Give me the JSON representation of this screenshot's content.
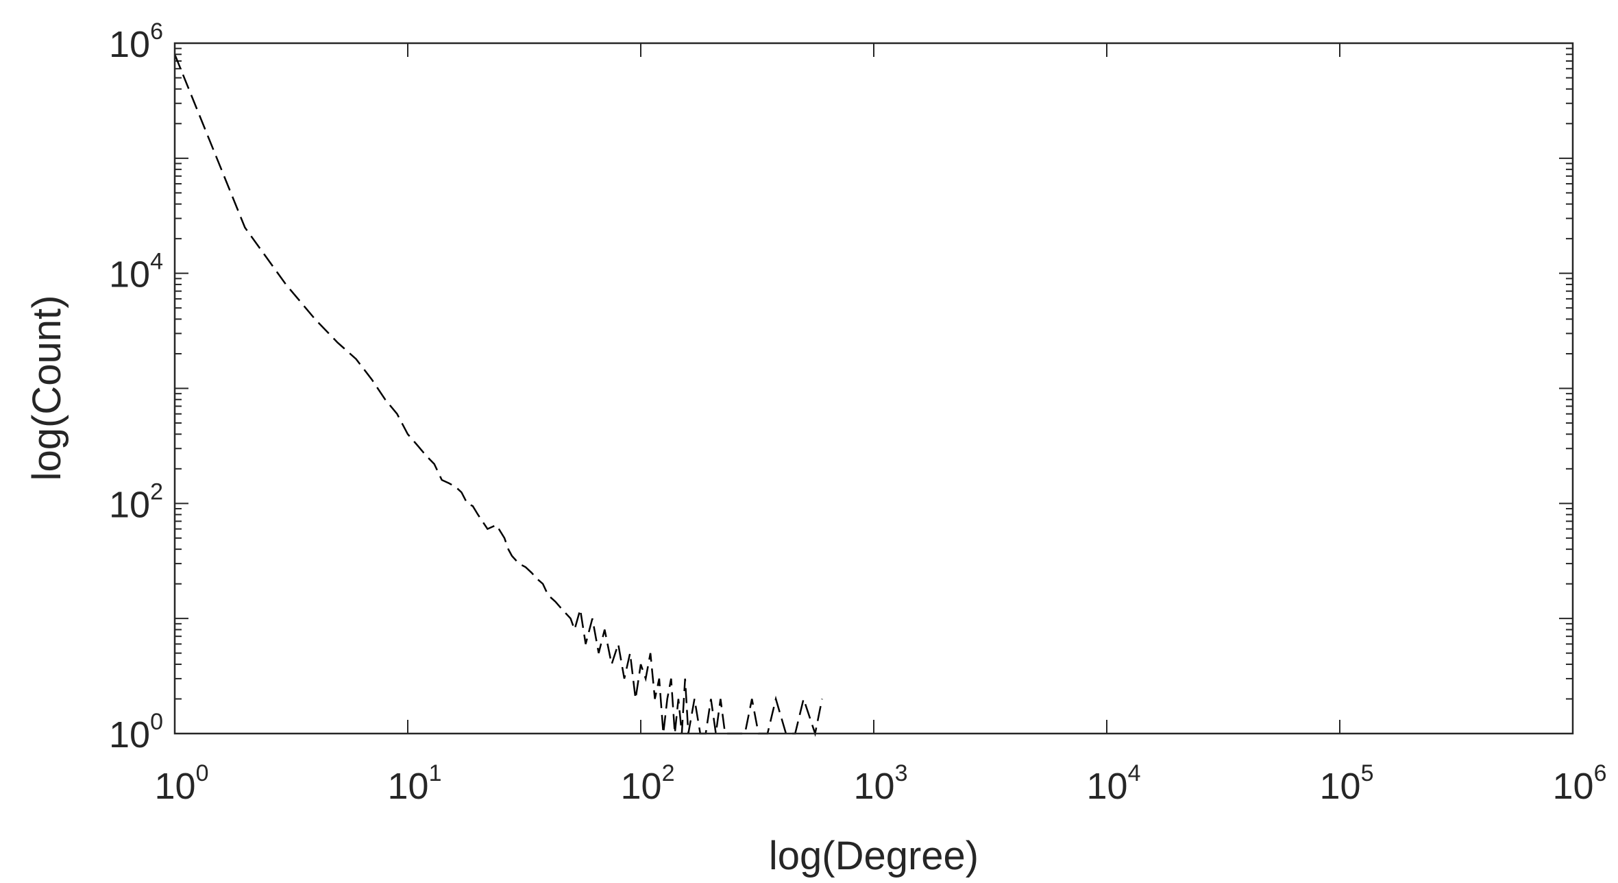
{
  "chart_data": {
    "type": "line",
    "xlabel": "log(Degree)",
    "ylabel": "log(Count)",
    "xscale": "log",
    "yscale": "log",
    "xlim": [
      1,
      1000000
    ],
    "ylim": [
      1,
      1000000
    ],
    "grid": false,
    "legend": "none",
    "line_style": "dashed",
    "line_color": "#000000",
    "box": true,
    "x_ticks": [
      {
        "base": "10",
        "exp": "0"
      },
      {
        "base": "10",
        "exp": "1"
      },
      {
        "base": "10",
        "exp": "2"
      },
      {
        "base": "10",
        "exp": "3"
      },
      {
        "base": "10",
        "exp": "4"
      },
      {
        "base": "10",
        "exp": "5"
      },
      {
        "base": "10",
        "exp": "6"
      }
    ],
    "y_ticks": [
      {
        "base": "10",
        "exp": "0"
      },
      {
        "base": "10",
        "exp": "2"
      },
      {
        "base": "10",
        "exp": "4"
      },
      {
        "base": "10",
        "exp": "6"
      }
    ],
    "series": [
      {
        "x": [
          1,
          2,
          3,
          4,
          5,
          6,
          7,
          8,
          9,
          10,
          11,
          12,
          13,
          14,
          15,
          16,
          17,
          18,
          19,
          20,
          22,
          24,
          26,
          27,
          28,
          30,
          32,
          34,
          36,
          38,
          40,
          43,
          46,
          50,
          52,
          55,
          58,
          62,
          66,
          70,
          75,
          80,
          85,
          90,
          95,
          100,
          105,
          110,
          115,
          120,
          125,
          130,
          135,
          140,
          145,
          150,
          155,
          160,
          170,
          180,
          190,
          200,
          210,
          220,
          230,
          280,
          300,
          320,
          350,
          380,
          420,
          460,
          500,
          560,
          600
        ],
        "y": [
          800000,
          25000,
          8000,
          4000,
          2500,
          1800,
          1200,
          800,
          600,
          400,
          320,
          260,
          220,
          160,
          150,
          140,
          125,
          100,
          95,
          80,
          60,
          65,
          50,
          40,
          35,
          30,
          28,
          25,
          22,
          20,
          16,
          14,
          12,
          10,
          8,
          12,
          6,
          10,
          5,
          8,
          4,
          6,
          3,
          5,
          2,
          4,
          3,
          5,
          2,
          3,
          1,
          2,
          3,
          1,
          2,
          1,
          3,
          1,
          2,
          1,
          1,
          2,
          1,
          2,
          1,
          1,
          2,
          1,
          1,
          2,
          1,
          1,
          2,
          1,
          2
        ]
      }
    ]
  }
}
